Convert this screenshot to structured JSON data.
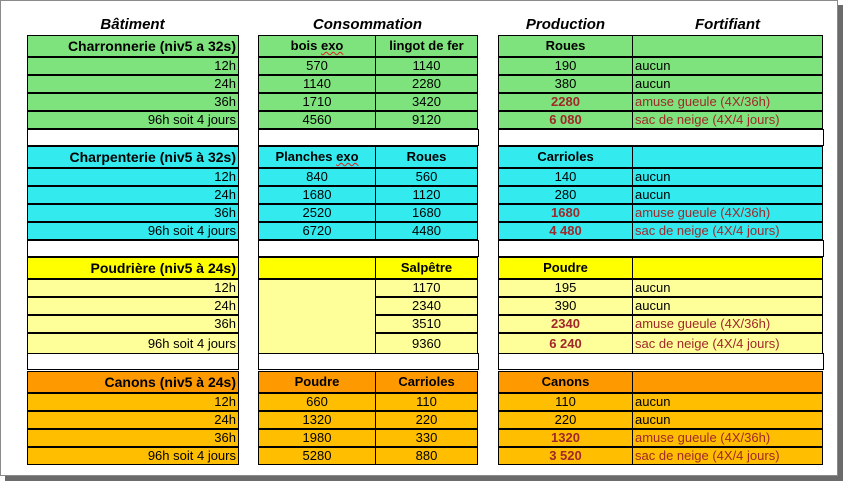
{
  "headers": {
    "batiment": "Bâtiment",
    "consommation": "Consommation",
    "production": "Production",
    "fortifiant": "Fortifiant"
  },
  "colors": {
    "charronnerie": "#7ee37c",
    "charpenterie": "#33eaef",
    "poudriere_title": "#ffff00",
    "poudriere_rows": "#ffff99",
    "canons": "#ff9900",
    "canons_rows": "#ffbf00",
    "red_text": "#a0282a"
  },
  "sections": [
    {
      "title": "Charronnerie (niv5 a 32s)",
      "cons_a": "bois exo",
      "cons_b": "lingot de fer",
      "production": "Roues",
      "fortifiant": "",
      "rows": [
        {
          "time": "12h",
          "a": "570",
          "b": "1140",
          "prod": "190",
          "fort": "aucun"
        },
        {
          "time": "24h",
          "a": "1140",
          "b": "2280",
          "prod": "380",
          "fort": "aucun"
        },
        {
          "time": "36h",
          "a": "1710",
          "b": "3420",
          "prod": "2280",
          "fort": "amuse gueule (4X/36h)"
        },
        {
          "time": "96h soit 4 jours",
          "a": "4560",
          "b": "9120",
          "prod": "6 080",
          "fort": "sac de neige (4X/4 jours)"
        }
      ]
    },
    {
      "title": "Charpenterie (niv5 à 32s)",
      "cons_a": "Planches exo",
      "cons_b": "Roues",
      "production": "Carrioles",
      "fortifiant": "",
      "rows": [
        {
          "time": "12h",
          "a": "840",
          "b": "560",
          "prod": "140",
          "fort": "aucun"
        },
        {
          "time": "24h",
          "a": "1680",
          "b": "1120",
          "prod": "280",
          "fort": "aucun"
        },
        {
          "time": "36h",
          "a": "2520",
          "b": "1680",
          "prod": "1680",
          "fort": "amuse gueule (4X/36h)"
        },
        {
          "time": "96h soit 4 jours",
          "a": "6720",
          "b": "4480",
          "prod": "4 480",
          "fort": "sac de neige (4X/4 jours)"
        }
      ]
    },
    {
      "title": "Poudrière (niv5 à 24s)",
      "cons_a": "",
      "cons_b": "Salpêtre",
      "production": "Poudre",
      "fortifiant": "",
      "rows": [
        {
          "time": "12h",
          "a": "",
          "b": "1170",
          "prod": "195",
          "fort": "aucun"
        },
        {
          "time": "24h",
          "a": "",
          "b": "2340",
          "prod": "390",
          "fort": "aucun"
        },
        {
          "time": "36h",
          "a": "",
          "b": "3510",
          "prod": "2340",
          "fort": "amuse gueule (4X/36h)"
        },
        {
          "time": "96h soit 4 jours",
          "a": "",
          "b": "9360",
          "prod": "6 240",
          "fort": "sac de neige (4X/4 jours)"
        }
      ]
    },
    {
      "title": "Canons (niv5 à 24s)",
      "cons_a": "Poudre",
      "cons_b": "Carrioles",
      "production": "Canons",
      "fortifiant": "",
      "rows": [
        {
          "time": "12h",
          "a": "660",
          "b": "110",
          "prod": "110",
          "fort": "aucun"
        },
        {
          "time": "24h",
          "a": "1320",
          "b": "220",
          "prod": "220",
          "fort": "aucun"
        },
        {
          "time": "36h",
          "a": "1980",
          "b": "330",
          "prod": "1320",
          "fort": "amuse gueule (4X/36h)"
        },
        {
          "time": "96h soit 4 jours",
          "a": "5280",
          "b": "880",
          "prod": "3 520",
          "fort": "sac de neige (4X/4 jours)"
        }
      ]
    }
  ]
}
